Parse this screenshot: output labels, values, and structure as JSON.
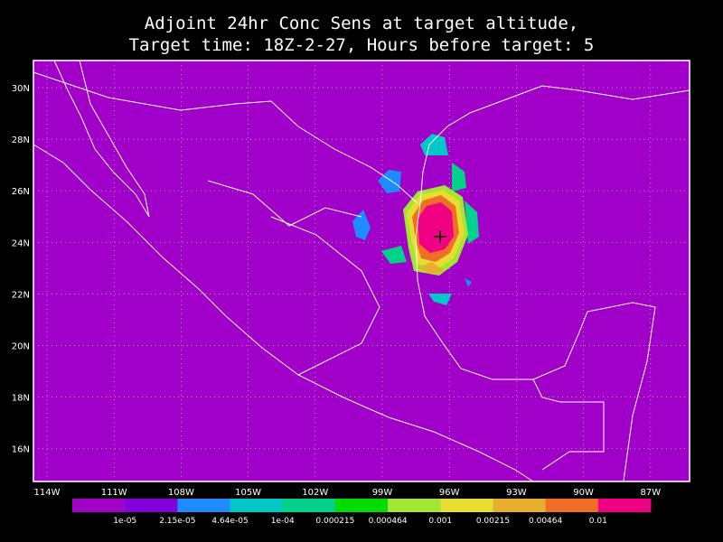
{
  "title": [
    "Adjoint 24hr Conc Sens at target altitude,",
    "Target time: 18Z-2-27, Hours before target: 5"
  ],
  "lat_labels": [
    "30N",
    "28N",
    "26N",
    "24N",
    "22N",
    "20N",
    "18N",
    "16N"
  ],
  "lon_labels": [
    "114W",
    "111W",
    "108W",
    "105W",
    "102W",
    "99W",
    "96W",
    "93W",
    "90W",
    "87W"
  ],
  "colorbar": {
    "colors": [
      "#a000c8",
      "#8200dc",
      "#1e8cff",
      "#00c8c8",
      "#00d28c",
      "#00dc00",
      "#a0e632",
      "#e6dc32",
      "#e6af2d",
      "#f06e28",
      "#f00082"
    ],
    "labels": [
      "1e-05",
      "2.15e-05",
      "4.64e-05",
      "1e-04",
      "0.000215",
      "0.000464",
      "0.001",
      "0.00215",
      "0.00464",
      "0.01"
    ]
  }
}
